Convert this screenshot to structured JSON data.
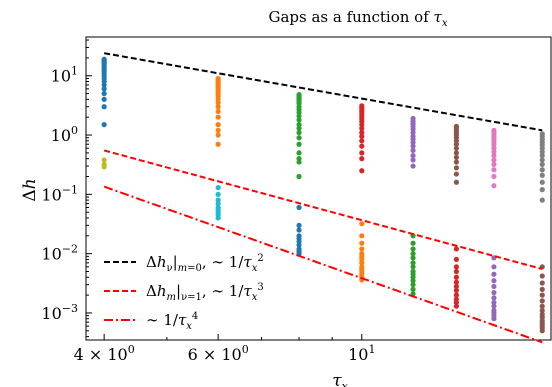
{
  "chart_data": {
    "type": "scatter",
    "title": "Gaps as a function of τ_x",
    "title_parts": [
      "Gaps as a function of ",
      "τ",
      "x"
    ],
    "xlabel": "τ_x",
    "xlabel_parts": [
      "τ",
      "x"
    ],
    "ylabel": "Δh",
    "ylabel_parts": [
      "Δ",
      "h"
    ],
    "xscale": "log",
    "yscale": "log",
    "xlim": [
      3.75,
      19.6
    ],
    "ylim": [
      0.00035,
      45
    ],
    "x_ticks": [
      {
        "value": 4,
        "label_base": "4 × 10",
        "label_exp": "0"
      },
      {
        "value": 6,
        "label_base": "6 × 10",
        "label_exp": "0"
      },
      {
        "value": 10,
        "label_base": "10",
        "label_exp": "1"
      }
    ],
    "y_ticks": [
      {
        "value": 10,
        "label_base": "10",
        "label_exp": "1"
      },
      {
        "value": 1,
        "label_base": "10",
        "label_exp": "0"
      },
      {
        "value": 0.1,
        "label_base": "10",
        "label_exp": "−1"
      },
      {
        "value": 0.01,
        "label_base": "10",
        "label_exp": "−2"
      },
      {
        "value": 0.001,
        "label_base": "10",
        "label_exp": "−3"
      }
    ],
    "grid": false,
    "legend_position": "lower-left",
    "scatter_groups": [
      {
        "x": 4,
        "color": "#1f77b4",
        "y": [
          19,
          18,
          17,
          16,
          15,
          14,
          13,
          12,
          11,
          10,
          9,
          8,
          7,
          6,
          5,
          4,
          3,
          1.5
        ]
      },
      {
        "x": 4,
        "color": "#bcbd22",
        "y": [
          0.38,
          0.32,
          0.29
        ]
      },
      {
        "x": 6,
        "color": "#ff7f0e",
        "y": [
          9,
          8.5,
          8,
          7.5,
          7,
          6.5,
          6,
          5.5,
          5,
          4.5,
          4,
          3.5,
          3,
          2.5,
          2,
          1.5,
          1.2,
          1.0,
          0.7
        ]
      },
      {
        "x": 6,
        "color": "#17becf",
        "y": [
          0.13,
          0.1,
          0.08,
          0.07,
          0.06,
          0.055,
          0.05,
          0.045,
          0.04
        ]
      },
      {
        "x": 8,
        "color": "#2ca02c",
        "y": [
          4.8,
          4.5,
          4.2,
          4,
          3.7,
          3.4,
          3,
          2.7,
          2.4,
          2.1,
          1.8,
          1.5,
          1.3,
          1.1,
          0.9,
          0.7,
          0.5,
          0.4,
          0.35,
          0.2
        ]
      },
      {
        "x": 8,
        "color": "#1f77b4",
        "y": [
          0.06,
          0.03,
          0.025,
          0.02,
          0.018,
          0.016,
          0.014,
          0.012,
          0.011,
          0.01
        ]
      },
      {
        "x": 10,
        "color": "#d62728",
        "y": [
          3.1,
          2.9,
          2.7,
          2.5,
          2.3,
          2.1,
          1.9,
          1.7,
          1.5,
          1.3,
          1.1,
          0.95,
          0.8,
          0.65,
          0.5,
          0.4,
          0.25
        ]
      },
      {
        "x": 10,
        "color": "#ff7f0e",
        "y": [
          0.032,
          0.02,
          0.015,
          0.012,
          0.01,
          0.009,
          0.008,
          0.007,
          0.006,
          0.0055,
          0.005,
          0.0045,
          0.004,
          0.0036
        ]
      },
      {
        "x": 12,
        "color": "#9467bd",
        "y": [
          1.9,
          1.7,
          1.55,
          1.4,
          1.25,
          1.1,
          0.95,
          0.85,
          0.75,
          0.65,
          0.55,
          0.45,
          0.38,
          0.3
        ]
      },
      {
        "x": 12,
        "color": "#2ca02c",
        "y": [
          0.02,
          0.015,
          0.012,
          0.01,
          0.0085,
          0.007,
          0.006,
          0.005,
          0.0045,
          0.004,
          0.0035,
          0.003,
          0.0025,
          0.0021
        ]
      },
      {
        "x": 14,
        "color": "#8c564b",
        "y": [
          1.4,
          1.3,
          1.2,
          1.1,
          1.0,
          0.9,
          0.8,
          0.7,
          0.6,
          0.5,
          0.42,
          0.35,
          0.28,
          0.22,
          0.16
        ]
      },
      {
        "x": 14,
        "color": "#d62728",
        "y": [
          0.012,
          0.008,
          0.006,
          0.005,
          0.004,
          0.0033,
          0.0028,
          0.0024,
          0.002,
          0.0017,
          0.0015,
          0.0013
        ]
      },
      {
        "x": 16,
        "color": "#e377c2",
        "y": [
          1.2,
          1.1,
          1.0,
          0.92,
          0.84,
          0.76,
          0.68,
          0.6,
          0.52,
          0.45,
          0.38,
          0.32,
          0.26,
          0.2,
          0.14
        ]
      },
      {
        "x": 16,
        "color": "#9467bd",
        "y": [
          0.0085,
          0.006,
          0.0045,
          0.0035,
          0.0028,
          0.0022,
          0.0018,
          0.0015,
          0.0013,
          0.0011,
          0.001,
          0.0009,
          0.0008
        ]
      },
      {
        "x": 19,
        "color": "#7f7f7f",
        "y": [
          1.05,
          0.95,
          0.85,
          0.76,
          0.68,
          0.6,
          0.52,
          0.45,
          0.38,
          0.32,
          0.26,
          0.21,
          0.16,
          0.12,
          0.08
        ]
      },
      {
        "x": 19,
        "color": "#8c564b",
        "y": [
          0.006,
          0.0042,
          0.0032,
          0.0025,
          0.002,
          0.0016,
          0.0013,
          0.0011,
          0.00095,
          0.00085,
          0.00075,
          0.00068,
          0.00062,
          0.00056,
          0.0005
        ]
      }
    ],
    "lines": [
      {
        "name": "Δh_ν|m=0, ∼ 1/τ_x²",
        "style": "dashed",
        "color": "#000000",
        "x": [
          4,
          19
        ],
        "y": [
          24,
          1.2
        ]
      },
      {
        "name": "Δh_m|ν=1, ∼ 1/τ_x³",
        "style": "dashed",
        "color": "#ff0000",
        "x": [
          4,
          19
        ],
        "y": [
          0.55,
          0.0055
        ]
      },
      {
        "name": "∼ 1/τ_x⁴",
        "style": "dashdot",
        "color": "#ff0000",
        "x": [
          4,
          19
        ],
        "y": [
          0.135,
          0.00032
        ]
      }
    ],
    "legend": [
      {
        "parts": [
          [
            "Δ",
            "n"
          ],
          [
            "h",
            "i"
          ],
          [
            "ν",
            "sub"
          ],
          [
            "|",
            "n"
          ],
          [
            "m",
            "sub-i"
          ],
          [
            "=0",
            "sub"
          ],
          [
            ", ∼ 1/",
            "n"
          ],
          [
            "τ",
            "i"
          ],
          [
            "x",
            "sub-i"
          ],
          [
            "2",
            "sup"
          ]
        ]
      },
      {
        "parts": [
          [
            "Δ",
            "n"
          ],
          [
            "h",
            "i"
          ],
          [
            "m",
            "sub-i"
          ],
          [
            "|",
            "n"
          ],
          [
            "ν",
            "sub"
          ],
          [
            "=1",
            "sub"
          ],
          [
            ", ∼ 1/",
            "n"
          ],
          [
            "τ",
            "i"
          ],
          [
            "x",
            "sub-i"
          ],
          [
            "3",
            "sup"
          ]
        ]
      },
      {
        "parts": [
          [
            "∼ 1/",
            "n"
          ],
          [
            "τ",
            "i"
          ],
          [
            "x",
            "sub-i"
          ],
          [
            "4",
            "sup"
          ]
        ]
      }
    ]
  }
}
